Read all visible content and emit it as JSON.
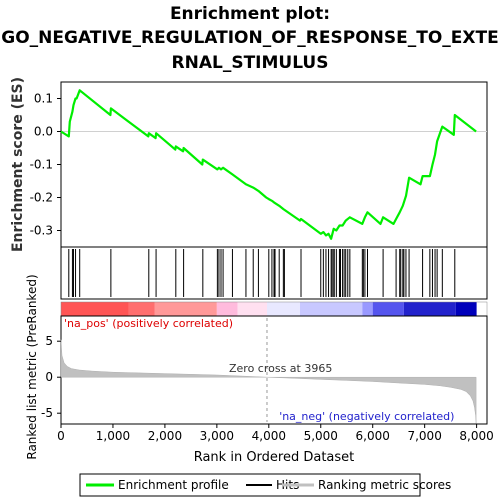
{
  "title_lines": [
    "Enrichment plot:",
    "GO_NEGATIVE_REGULATION_OF_RESPONSE_TO_EXTE",
    "RNAL_STIMULUS"
  ],
  "chart_data": {
    "type": "line",
    "title": "Enrichment plot: GO_NEGATIVE_REGULATION_OF_RESPONSE_TO_EXTERNAL_STIMULUS",
    "top_panel": {
      "ylabel": "Enrichment score (ES)",
      "ylim": [
        -0.35,
        0.15
      ],
      "yticks": [
        "0.1",
        "0.0",
        "-0.1",
        "-0.2",
        "-0.3"
      ],
      "ytick_values": [
        0.1,
        0.0,
        -0.1,
        -0.2,
        -0.3
      ],
      "series": [
        {
          "name": "Enrichment profile",
          "color": "#00ee00",
          "x": [
            0,
            150,
            170,
            220,
            240,
            280,
            300,
            360,
            950,
            960,
            1680,
            1690,
            1820,
            1830,
            2200,
            2210,
            2350,
            2360,
            2720,
            2730,
            3010,
            3040,
            3080,
            3120,
            3300,
            3560,
            3700,
            3800,
            3950,
            4000,
            4060,
            4100,
            4200,
            4280,
            4600,
            4620,
            5000,
            5050,
            5100,
            5150,
            5200,
            5250,
            5300,
            5360,
            5420,
            5480,
            5560,
            5800,
            5850,
            5900,
            6150,
            6200,
            6400,
            6450,
            6520,
            6580,
            6640,
            6700,
            6920,
            6960,
            7100,
            7150,
            7200,
            7240,
            7340,
            7560,
            7580,
            7990
          ],
          "y": [
            0.0,
            -0.015,
            0.03,
            0.06,
            0.08,
            0.1,
            0.1,
            0.125,
            0.05,
            0.07,
            -0.015,
            -0.005,
            -0.02,
            -0.005,
            -0.055,
            -0.045,
            -0.06,
            -0.05,
            -0.1,
            -0.085,
            -0.115,
            -0.11,
            -0.115,
            -0.11,
            -0.13,
            -0.16,
            -0.17,
            -0.18,
            -0.2,
            -0.205,
            -0.21,
            -0.215,
            -0.225,
            -0.235,
            -0.27,
            -0.265,
            -0.31,
            -0.305,
            -0.315,
            -0.31,
            -0.325,
            -0.295,
            -0.3,
            -0.285,
            -0.285,
            -0.27,
            -0.26,
            -0.28,
            -0.26,
            -0.245,
            -0.28,
            -0.26,
            -0.28,
            -0.265,
            -0.245,
            -0.225,
            -0.195,
            -0.14,
            -0.16,
            -0.135,
            -0.135,
            -0.1,
            -0.07,
            -0.03,
            0.015,
            -0.01,
            0.05,
            0.0
          ]
        }
      ]
    },
    "hits": {
      "name": "Hits",
      "x": [
        150,
        220,
        240,
        280,
        360,
        960,
        1690,
        1830,
        2210,
        2360,
        2730,
        3010,
        3040,
        3080,
        3120,
        3300,
        3560,
        3700,
        3800,
        4000,
        4060,
        4100,
        4120,
        4200,
        4280,
        4300,
        4620,
        5000,
        5050,
        5100,
        5150,
        5200,
        5220,
        5250,
        5260,
        5300,
        5360,
        5380,
        5420,
        5450,
        5480,
        5520,
        5560,
        5800,
        5820,
        5850,
        5900,
        6200,
        6450,
        6520,
        6540,
        6580,
        6600,
        6640,
        6700,
        6960,
        7100,
        7150,
        7200,
        7240,
        7340,
        7580
      ]
    },
    "ranking_bar": {
      "label_pos": "'na_pos' (positively correlated)",
      "label_neg": "'na_neg' (negatively correlated)",
      "colors": [
        "#ff5555",
        "#ff6e6e",
        "#ff9999",
        "#ffbbdd",
        "#ffe0f0",
        "#e8e8ff",
        "#c8c8ff",
        "#9999ff",
        "#5555ee",
        "#2222cc",
        "#0000bb"
      ],
      "segment_edges": [
        0,
        1300,
        1800,
        3000,
        3400,
        3965,
        4600,
        5800,
        6000,
        6600,
        7600,
        8000
      ]
    },
    "bottom_panel": {
      "ylabel": "Ranked list metric (PreRanked)",
      "xlabel": "Rank in Ordered Dataset",
      "ylim": [
        -6.5,
        8.5
      ],
      "yticks": [
        "5",
        "0",
        "-5"
      ],
      "ytick_values": [
        5,
        0,
        -5
      ],
      "xlim": [
        0,
        8200
      ],
      "xticks": [
        "0",
        "1,000",
        "2,000",
        "3,000",
        "4,000",
        "5,000",
        "6,000",
        "7,000",
        "8,000"
      ],
      "xtick_values": [
        0,
        1000,
        2000,
        3000,
        4000,
        5000,
        6000,
        7000,
        8000
      ],
      "zero_cross_label": "Zero cross at 3965",
      "zero_cross": 3965,
      "series": [
        {
          "name": "Ranking metric scores",
          "color": "#c0c0c0",
          "x": [
            0,
            20,
            60,
            120,
            200,
            350,
            600,
            1000,
            1500,
            2000,
            2500,
            3000,
            3500,
            3965,
            4500,
            5000,
            5500,
            6000,
            6500,
            7000,
            7300,
            7500,
            7700,
            7800,
            7880,
            7930,
            7960,
            7980,
            7990
          ],
          "y": [
            5.2,
            3.0,
            2.0,
            1.5,
            1.2,
            1.0,
            0.85,
            0.7,
            0.6,
            0.5,
            0.4,
            0.3,
            0.15,
            0.0,
            -0.15,
            -0.3,
            -0.45,
            -0.6,
            -0.8,
            -1.0,
            -1.2,
            -1.4,
            -1.7,
            -2.0,
            -2.6,
            -3.3,
            -4.2,
            -5.3,
            -6.4
          ]
        }
      ]
    },
    "legend": {
      "position": "bottom",
      "items": [
        {
          "label": "Enrichment profile",
          "color": "#00ee00"
        },
        {
          "label": "Hits",
          "color": "#000000"
        },
        {
          "label": "Ranking metric scores",
          "color": "#c0c0c0"
        }
      ]
    }
  }
}
